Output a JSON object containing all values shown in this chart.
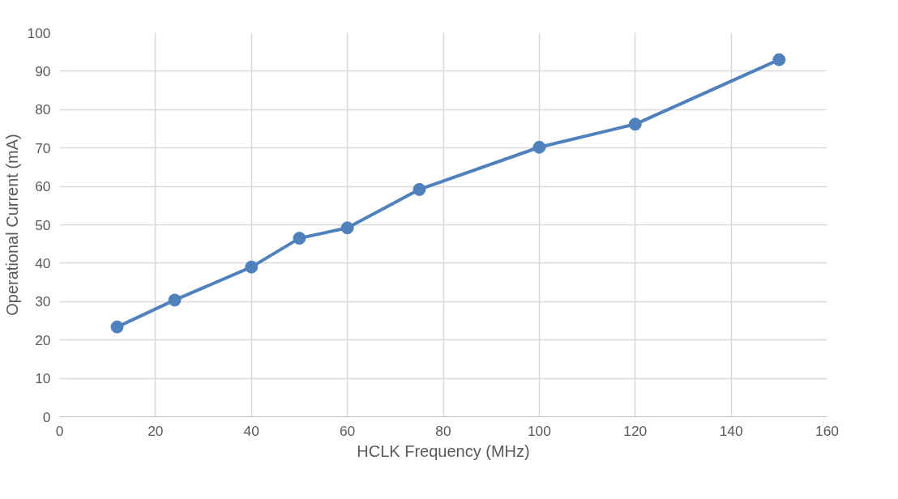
{
  "chart_data": {
    "type": "line",
    "xlabel": "HCLK Frequency (MHz)",
    "ylabel": "Operational Current (mA)",
    "x": [
      12,
      24,
      40,
      50,
      60,
      75,
      100,
      120,
      150
    ],
    "series": [
      {
        "color": "#4f81bd",
        "values": [
          23.4,
          30.4,
          39,
          46.5,
          49.2,
          59.2,
          70.2,
          76.2,
          93
        ]
      }
    ],
    "xlim": [
      0,
      160
    ],
    "xticks": [
      0,
      20,
      40,
      60,
      80,
      100,
      120,
      140,
      160
    ],
    "ylim": [
      0,
      100
    ],
    "yticks": [
      0,
      10,
      20,
      30,
      40,
      50,
      60,
      70,
      80,
      90,
      100
    ],
    "grid": true,
    "marker": "circle",
    "line_style": "solid"
  }
}
